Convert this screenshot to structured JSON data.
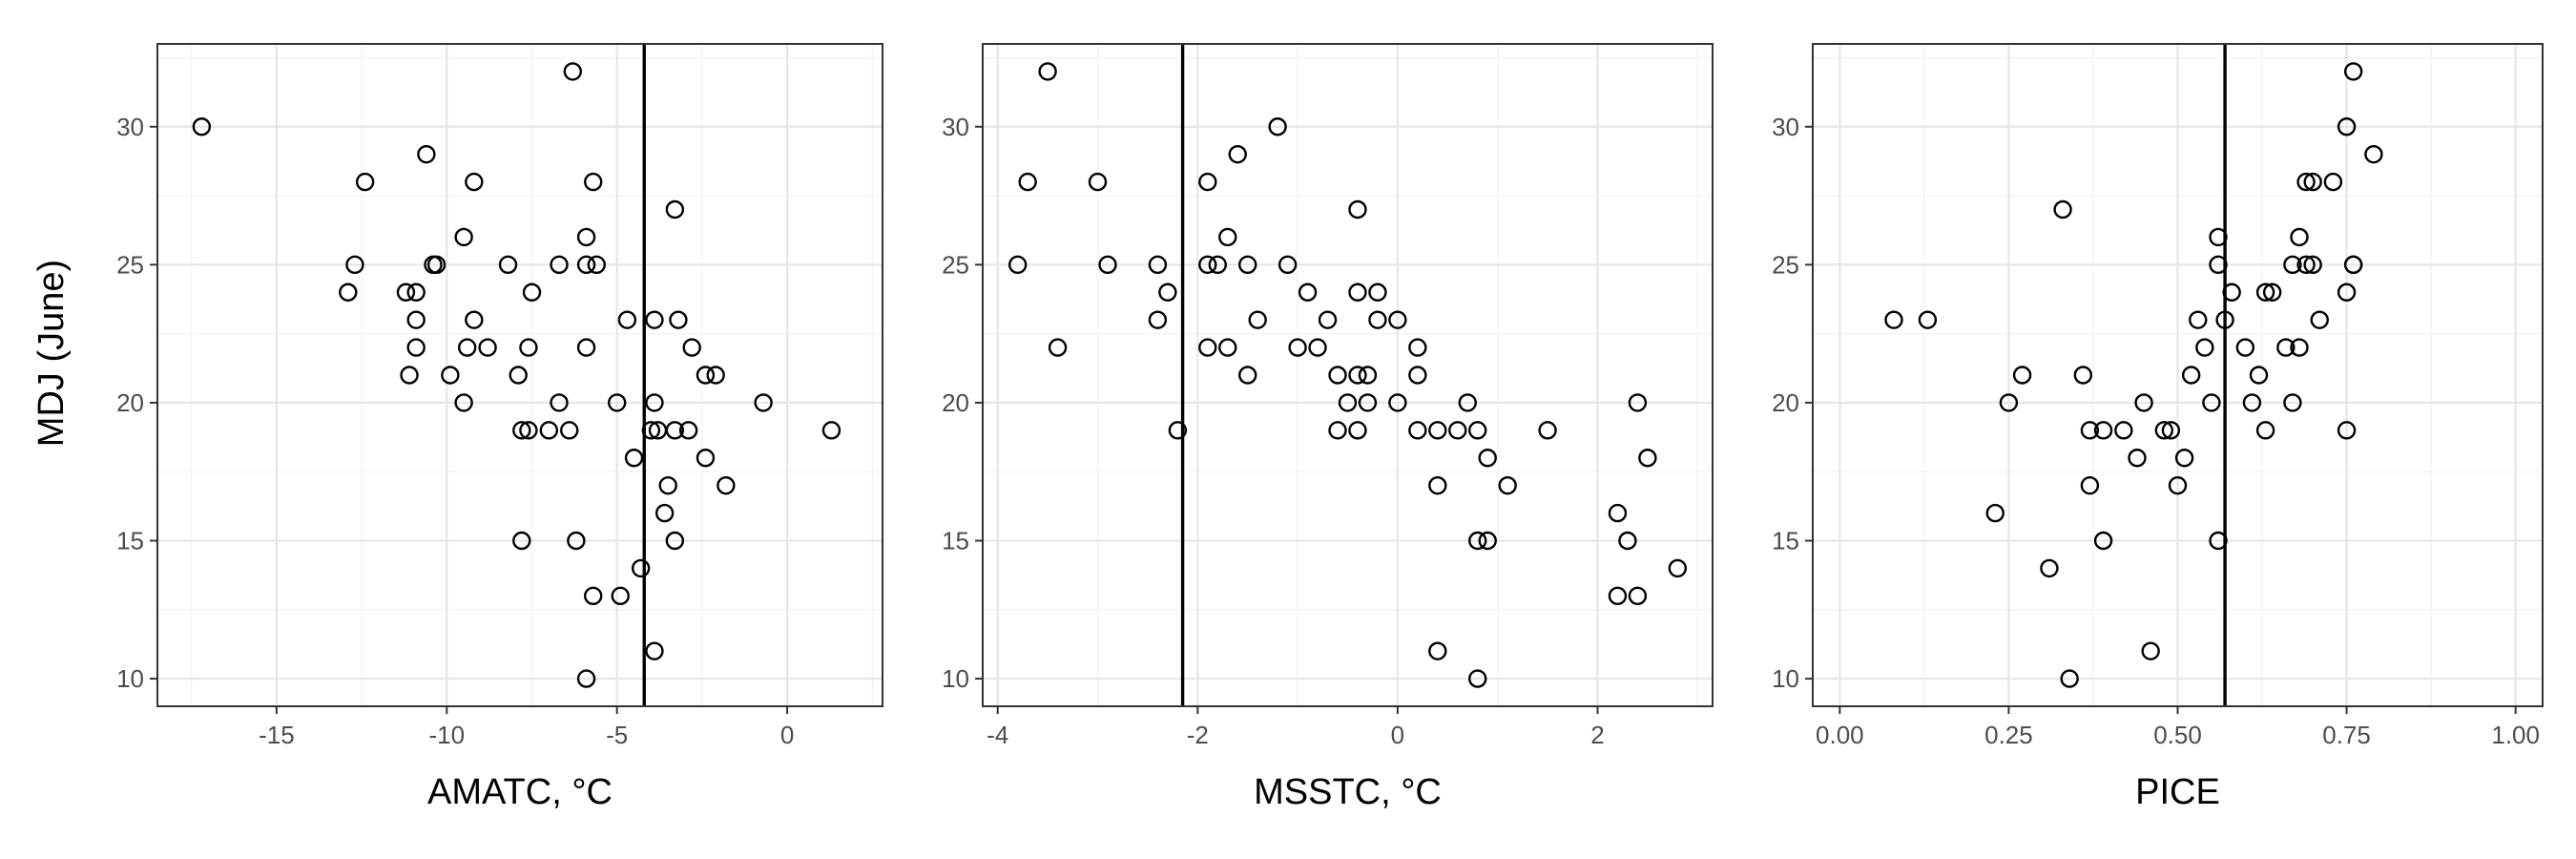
{
  "chart_data": {
    "type": "scatter",
    "shared_y": {
      "label": "MDJ (June)",
      "ylim": [
        9,
        33
      ],
      "ticks": [
        10,
        15,
        20,
        25,
        30
      ]
    },
    "grid": true,
    "legend": "none",
    "panels": [
      {
        "xlabel": "AMATC, °C",
        "xlim": [
          -18.5,
          2.8
        ],
        "xticks": [
          -15,
          -10,
          -5,
          0
        ],
        "xtick_labels": [
          "-15",
          "-10",
          "-5",
          "0"
        ],
        "vline": -4.2,
        "points": [
          [
            -17.2,
            30
          ],
          [
            -12.4,
            28
          ],
          [
            -12.7,
            25
          ],
          [
            -12.9,
            24
          ],
          [
            -11.2,
            24
          ],
          [
            -10.9,
            24
          ],
          [
            -11.1,
            21
          ],
          [
            -10.9,
            22
          ],
          [
            -10.9,
            23
          ],
          [
            -10.6,
            29
          ],
          [
            -10.4,
            25
          ],
          [
            -10.3,
            25
          ],
          [
            -9.9,
            21
          ],
          [
            -9.5,
            26
          ],
          [
            -9.5,
            20
          ],
          [
            -9.4,
            22
          ],
          [
            -9.2,
            28
          ],
          [
            -9.2,
            23
          ],
          [
            -8.8,
            22
          ],
          [
            -8.2,
            25
          ],
          [
            -7.9,
            21
          ],
          [
            -7.8,
            19
          ],
          [
            -7.6,
            19
          ],
          [
            -7.6,
            22
          ],
          [
            -7.5,
            24
          ],
          [
            -7.8,
            15
          ],
          [
            -7.0,
            19
          ],
          [
            -6.7,
            25
          ],
          [
            -6.7,
            20
          ],
          [
            -6.4,
            19
          ],
          [
            -6.3,
            32
          ],
          [
            -6.2,
            15
          ],
          [
            -5.9,
            26
          ],
          [
            -5.9,
            25
          ],
          [
            -5.9,
            22
          ],
          [
            -5.7,
            28
          ],
          [
            -5.6,
            25
          ],
          [
            -5.9,
            10
          ],
          [
            -5.7,
            13
          ],
          [
            -5.0,
            20
          ],
          [
            -4.9,
            13
          ],
          [
            -4.7,
            23
          ],
          [
            -4.5,
            18
          ],
          [
            -4.3,
            14
          ],
          [
            -4.0,
            19
          ],
          [
            -3.9,
            23
          ],
          [
            -3.9,
            20
          ],
          [
            -3.8,
            19
          ],
          [
            -3.9,
            11
          ],
          [
            -3.6,
            16
          ],
          [
            -3.5,
            17
          ],
          [
            -3.3,
            27
          ],
          [
            -3.3,
            19
          ],
          [
            -3.3,
            15
          ],
          [
            -3.2,
            23
          ],
          [
            -2.9,
            19
          ],
          [
            -2.8,
            22
          ],
          [
            -2.4,
            21
          ],
          [
            -2.4,
            18
          ],
          [
            -2.1,
            21
          ],
          [
            -1.8,
            17
          ],
          [
            -0.7,
            20
          ],
          [
            1.3,
            19
          ]
        ]
      },
      {
        "xlabel": "MSSTC, °C",
        "xlim": [
          -4.15,
          3.15
        ],
        "xticks": [
          -4,
          -2,
          0,
          2
        ],
        "xtick_labels": [
          "-4",
          "-2",
          "0",
          "2"
        ],
        "vline": -2.15,
        "points": [
          [
            -3.8,
            25
          ],
          [
            -3.7,
            28
          ],
          [
            -3.5,
            32
          ],
          [
            -3.4,
            22
          ],
          [
            -3.0,
            28
          ],
          [
            -2.9,
            25
          ],
          [
            -2.4,
            25
          ],
          [
            -2.4,
            23
          ],
          [
            -2.3,
            24
          ],
          [
            -2.2,
            19
          ],
          [
            -1.9,
            28
          ],
          [
            -1.9,
            25
          ],
          [
            -1.9,
            22
          ],
          [
            -1.8,
            25
          ],
          [
            -1.7,
            26
          ],
          [
            -1.7,
            22
          ],
          [
            -1.6,
            29
          ],
          [
            -1.5,
            25
          ],
          [
            -1.5,
            21
          ],
          [
            -1.4,
            23
          ],
          [
            -1.2,
            30
          ],
          [
            -1.1,
            25
          ],
          [
            -1.0,
            22
          ],
          [
            -0.9,
            24
          ],
          [
            -0.8,
            22
          ],
          [
            -0.7,
            23
          ],
          [
            -0.6,
            21
          ],
          [
            -0.6,
            19
          ],
          [
            -0.5,
            20
          ],
          [
            -0.4,
            27
          ],
          [
            -0.4,
            24
          ],
          [
            -0.4,
            21
          ],
          [
            -0.4,
            19
          ],
          [
            -0.3,
            21
          ],
          [
            -0.3,
            20
          ],
          [
            -0.2,
            24
          ],
          [
            -0.2,
            23
          ],
          [
            0.0,
            23
          ],
          [
            0.0,
            20
          ],
          [
            0.2,
            22
          ],
          [
            0.2,
            21
          ],
          [
            0.2,
            19
          ],
          [
            0.4,
            19
          ],
          [
            0.4,
            17
          ],
          [
            0.4,
            11
          ],
          [
            0.6,
            19
          ],
          [
            0.7,
            20
          ],
          [
            0.8,
            19
          ],
          [
            0.8,
            15
          ],
          [
            0.8,
            10
          ],
          [
            0.9,
            18
          ],
          [
            0.9,
            15
          ],
          [
            1.1,
            17
          ],
          [
            1.5,
            19
          ],
          [
            2.2,
            16
          ],
          [
            2.2,
            13
          ],
          [
            2.3,
            15
          ],
          [
            2.4,
            20
          ],
          [
            2.4,
            13
          ],
          [
            2.5,
            18
          ],
          [
            2.8,
            14
          ]
        ]
      },
      {
        "xlabel": "PICE",
        "xlim": [
          -0.04,
          1.04
        ],
        "xticks": [
          0,
          0.25,
          0.5,
          0.75,
          1
        ],
        "xtick_labels": [
          "0.00",
          "0.25",
          "0.50",
          "0.75",
          "1.00"
        ],
        "vline": 0.57,
        "points": [
          [
            0.08,
            23
          ],
          [
            0.13,
            23
          ],
          [
            0.23,
            16
          ],
          [
            0.25,
            20
          ],
          [
            0.27,
            21
          ],
          [
            0.31,
            14
          ],
          [
            0.33,
            27
          ],
          [
            0.34,
            10
          ],
          [
            0.36,
            21
          ],
          [
            0.37,
            19
          ],
          [
            0.37,
            17
          ],
          [
            0.39,
            19
          ],
          [
            0.39,
            15
          ],
          [
            0.42,
            19
          ],
          [
            0.44,
            18
          ],
          [
            0.45,
            20
          ],
          [
            0.46,
            11
          ],
          [
            0.48,
            19
          ],
          [
            0.49,
            19
          ],
          [
            0.5,
            17
          ],
          [
            0.51,
            18
          ],
          [
            0.52,
            21
          ],
          [
            0.53,
            23
          ],
          [
            0.54,
            22
          ],
          [
            0.55,
            20
          ],
          [
            0.56,
            26
          ],
          [
            0.56,
            25
          ],
          [
            0.56,
            15
          ],
          [
            0.57,
            23
          ],
          [
            0.58,
            24
          ],
          [
            0.6,
            22
          ],
          [
            0.61,
            20
          ],
          [
            0.62,
            21
          ],
          [
            0.63,
            24
          ],
          [
            0.63,
            19
          ],
          [
            0.64,
            24
          ],
          [
            0.66,
            22
          ],
          [
            0.67,
            25
          ],
          [
            0.67,
            20
          ],
          [
            0.68,
            22
          ],
          [
            0.68,
            26
          ],
          [
            0.69,
            25
          ],
          [
            0.69,
            28
          ],
          [
            0.7,
            25
          ],
          [
            0.7,
            28
          ],
          [
            0.71,
            23
          ],
          [
            0.73,
            28
          ],
          [
            0.75,
            30
          ],
          [
            0.75,
            24
          ],
          [
            0.75,
            19
          ],
          [
            0.76,
            32
          ],
          [
            0.76,
            25
          ],
          [
            0.76,
            25
          ],
          [
            0.79,
            29
          ]
        ]
      }
    ]
  }
}
